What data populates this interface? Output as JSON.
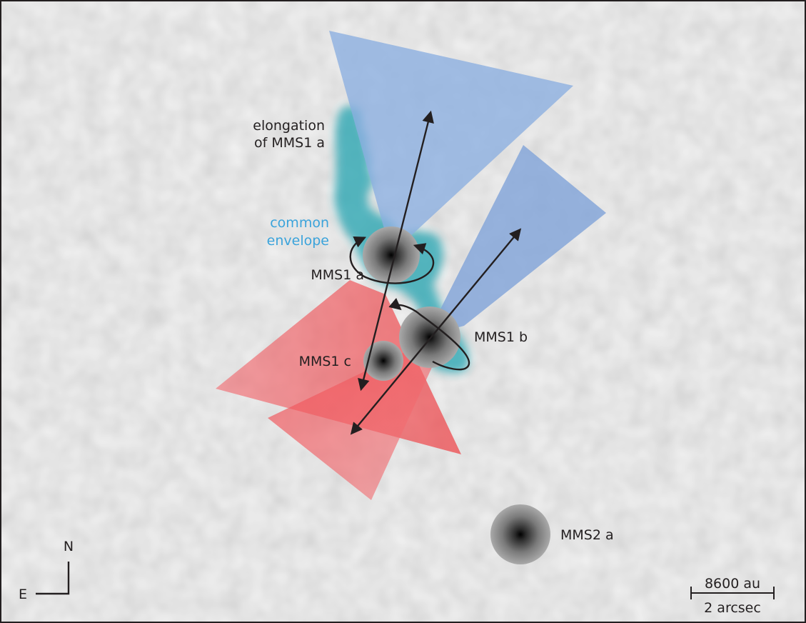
{
  "labels": {
    "elongation_line1": "elongation",
    "elongation_line2": "of MMS1 a",
    "envelope_line1": "common",
    "envelope_line2": "envelope",
    "mms1a": "MMS1 a",
    "mms1b": "MMS1 b",
    "mms1c": "MMS1 c",
    "mms2a": "MMS2 a"
  },
  "compass": {
    "north": "N",
    "east": "E"
  },
  "scalebar": {
    "top": "8600 au",
    "bottom": "2 arcsec"
  },
  "colors": {
    "background": "#dcdcdc",
    "blue_lobe": "#7fa2d8",
    "red_lobe": "#f0474c",
    "envelope": "#2ea6b4",
    "envelope_label": "#3aa3db",
    "ink": "#231f20"
  }
}
